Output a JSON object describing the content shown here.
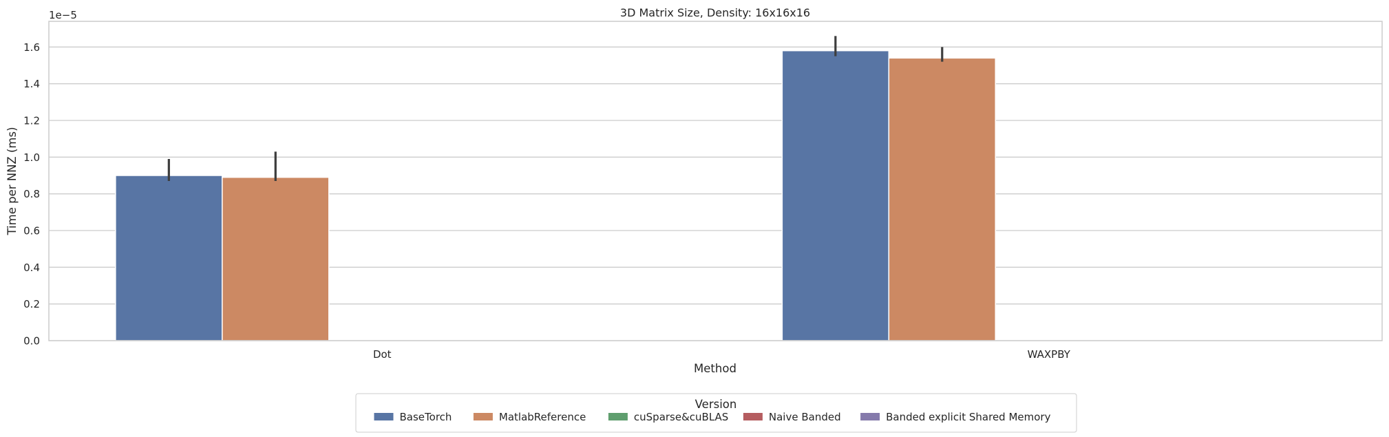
{
  "chart_data": {
    "type": "bar",
    "title": "3D Matrix Size, Density: 16x16x16",
    "xlabel": "Method",
    "ylabel": "Time per NNZ (ms)",
    "y_offset_label": "1e−5",
    "ylim": [
      0,
      1.74
    ],
    "yticks": [
      "0.0",
      "0.2",
      "0.4",
      "0.6",
      "0.8",
      "1.0",
      "1.2",
      "1.4",
      "1.6"
    ],
    "grid": true,
    "categories": [
      "Dot",
      "WAXPBY"
    ],
    "series": [
      {
        "name": "BaseTorch",
        "color": "#5875a4",
        "values": [
          0.9,
          1.58
        ],
        "err_low": [
          0.87,
          1.55
        ],
        "err_high": [
          0.99,
          1.66
        ]
      },
      {
        "name": "MatlabReference",
        "color": "#cc8963",
        "values": [
          0.89,
          1.54
        ],
        "err_low": [
          0.87,
          1.52
        ],
        "err_high": [
          1.03,
          1.6
        ]
      },
      {
        "name": "cuSparse&cuBLAS",
        "color": "#5f9e6e",
        "values": [
          null,
          null
        ],
        "err_low": [
          null,
          null
        ],
        "err_high": [
          null,
          null
        ]
      },
      {
        "name": "Naive Banded",
        "color": "#b55d60",
        "values": [
          null,
          null
        ],
        "err_low": [
          null,
          null
        ],
        "err_high": [
          null,
          null
        ]
      },
      {
        "name": "Banded explicit Shared Memory",
        "color": "#857aab",
        "values": [
          null,
          null
        ],
        "err_low": [
          null,
          null
        ],
        "err_high": [
          null,
          null
        ]
      }
    ],
    "legend": {
      "title": "Version",
      "placement": "bottom-center"
    }
  }
}
